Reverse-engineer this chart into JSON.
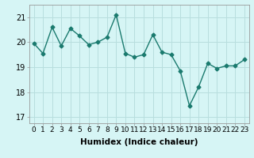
{
  "x": [
    0,
    1,
    2,
    3,
    4,
    5,
    6,
    7,
    8,
    9,
    10,
    11,
    12,
    13,
    14,
    15,
    16,
    17,
    18,
    19,
    20,
    21,
    22,
    23
  ],
  "y": [
    19.95,
    19.55,
    20.6,
    19.85,
    20.55,
    20.25,
    19.9,
    20.0,
    20.2,
    21.1,
    19.55,
    19.4,
    19.5,
    20.3,
    19.6,
    19.5,
    18.85,
    17.45,
    18.2,
    19.15,
    18.95,
    19.05,
    19.05,
    19.3
  ],
  "line_color": "#1a7a6e",
  "marker": "D",
  "markersize": 2.5,
  "linewidth": 1.0,
  "background_color": "#d6f5f5",
  "grid_color": "#b8dede",
  "xlabel": "Humidex (Indice chaleur)",
  "xlim": [
    -0.5,
    23.5
  ],
  "ylim": [
    16.75,
    21.5
  ],
  "yticks": [
    17,
    18,
    19,
    20,
    21
  ],
  "xticks": [
    0,
    1,
    2,
    3,
    4,
    5,
    6,
    7,
    8,
    9,
    10,
    11,
    12,
    13,
    14,
    15,
    16,
    17,
    18,
    19,
    20,
    21,
    22,
    23
  ],
  "xlabel_fontsize": 7.5,
  "tick_fontsize": 6.5,
  "ytick_fontsize": 7
}
